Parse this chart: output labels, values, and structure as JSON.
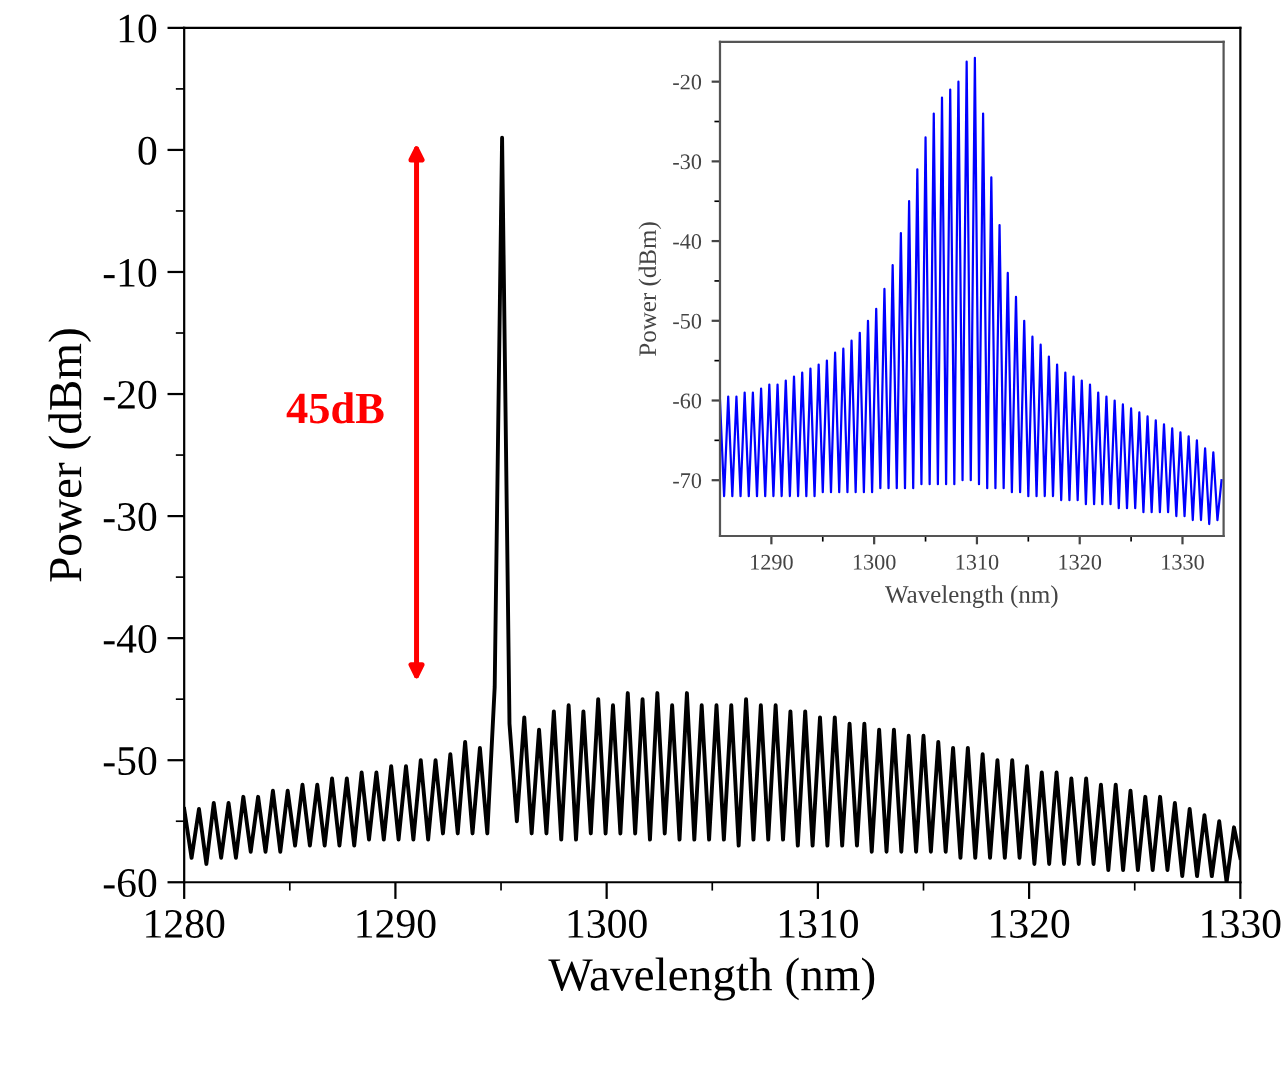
{
  "chart_data": [
    {
      "type": "line",
      "xlabel": "Wavelength (nm)",
      "ylabel": "Power (dBm)",
      "xlim": [
        1280,
        1330
      ],
      "ylim": [
        -60,
        10
      ],
      "xticks": [
        1280,
        1290,
        1300,
        1310,
        1320,
        1330
      ],
      "yticks": [
        -60,
        -50,
        -40,
        -30,
        -20,
        -10,
        0,
        10
      ],
      "grid": false,
      "legend": false,
      "marker": "none",
      "line_style": "solid",
      "annotations": [
        "45dB"
      ],
      "series": [
        {
          "color": "#000000",
          "x": [
            1280.0,
            1280.35,
            1280.7,
            1281.05,
            1281.4,
            1281.75,
            1282.1,
            1282.45,
            1282.8,
            1283.15,
            1283.5,
            1283.85,
            1284.2,
            1284.55,
            1284.9,
            1285.25,
            1285.6,
            1285.95,
            1286.3,
            1286.65,
            1287.0,
            1287.35,
            1287.7,
            1288.05,
            1288.4,
            1288.75,
            1289.1,
            1289.45,
            1289.8,
            1290.15,
            1290.5,
            1290.85,
            1291.2,
            1291.55,
            1291.9,
            1292.25,
            1292.6,
            1292.95,
            1293.3,
            1293.65,
            1294.0,
            1294.35,
            1294.7,
            1295.05,
            1295.4,
            1295.75,
            1296.1,
            1296.45,
            1296.8,
            1297.15,
            1297.5,
            1297.85,
            1298.2,
            1298.55,
            1298.9,
            1299.25,
            1299.6,
            1299.95,
            1300.3,
            1300.65,
            1301.0,
            1301.35,
            1301.7,
            1302.05,
            1302.4,
            1302.75,
            1303.1,
            1303.45,
            1303.8,
            1304.15,
            1304.5,
            1304.85,
            1305.2,
            1305.55,
            1305.9,
            1306.25,
            1306.6,
            1306.95,
            1307.3,
            1307.65,
            1308.0,
            1308.35,
            1308.7,
            1309.05,
            1309.4,
            1309.75,
            1310.1,
            1310.45,
            1310.8,
            1311.15,
            1311.5,
            1311.85,
            1312.2,
            1312.55,
            1312.9,
            1313.25,
            1313.6,
            1313.95,
            1314.3,
            1314.65,
            1315.0,
            1315.35,
            1315.7,
            1316.05,
            1316.4,
            1316.75,
            1317.1,
            1317.45,
            1317.8,
            1318.15,
            1318.5,
            1318.85,
            1319.2,
            1319.55,
            1319.9,
            1320.25,
            1320.6,
            1320.95,
            1321.3,
            1321.65,
            1322.0,
            1322.35,
            1322.7,
            1323.05,
            1323.4,
            1323.75,
            1324.1,
            1324.45,
            1324.8,
            1325.15,
            1325.5,
            1325.85,
            1326.2,
            1326.55,
            1326.9,
            1327.25,
            1327.6,
            1327.95,
            1328.3,
            1328.65,
            1329.0,
            1329.35,
            1329.7,
            1330.0
          ],
          "values": [
            -54,
            -58,
            -54,
            -58.5,
            -53.5,
            -58,
            -53.5,
            -58,
            -53,
            -57.5,
            -53,
            -57.5,
            -52.5,
            -57.5,
            -52.5,
            -57,
            -52,
            -57,
            -52,
            -57,
            -51.5,
            -57,
            -51.5,
            -57,
            -51,
            -56.5,
            -51,
            -56.5,
            -50.5,
            -56.5,
            -50.5,
            -56.5,
            -50,
            -56.5,
            -50,
            -56,
            -49.5,
            -56,
            -48.5,
            -56,
            -49,
            -56,
            -44,
            1,
            -47,
            -55,
            -46.5,
            -56,
            -47.5,
            -56,
            -46,
            -56.5,
            -45.5,
            -56.5,
            -46,
            -56,
            -45,
            -56,
            -45.5,
            -56,
            -44.5,
            -56,
            -45,
            -56.5,
            -44.5,
            -56,
            -45.5,
            -56.5,
            -44.5,
            -56.5,
            -45.5,
            -56.5,
            -45.5,
            -56.5,
            -45.5,
            -57,
            -45,
            -56.5,
            -45.5,
            -56.5,
            -45.5,
            -56.5,
            -46,
            -57,
            -46,
            -57,
            -46.5,
            -57,
            -46.5,
            -57,
            -47,
            -57,
            -47,
            -57.5,
            -47.5,
            -57.5,
            -47.5,
            -57.5,
            -48,
            -57.5,
            -48,
            -57.5,
            -48.5,
            -57.5,
            -49,
            -58,
            -49,
            -58,
            -49.5,
            -58,
            -50,
            -58,
            -50,
            -58,
            -50.5,
            -58.5,
            -51,
            -58.5,
            -51,
            -58.5,
            -51.5,
            -58.5,
            -51.5,
            -58.5,
            -52,
            -59,
            -52,
            -59,
            -52.5,
            -59,
            -53,
            -59,
            -53,
            -59,
            -53.5,
            -59.5,
            -54,
            -59.5,
            -54.5,
            -59.5,
            -55,
            -60,
            -55.5,
            -58
          ]
        }
      ]
    },
    {
      "type": "line",
      "xlabel": "Wavelength (nm)",
      "ylabel": "Power (dBm)",
      "xlim": [
        1285,
        1334
      ],
      "ylim": [
        -77,
        -15
      ],
      "xticks": [
        1290,
        1300,
        1310,
        1320,
        1330
      ],
      "yticks": [
        -70,
        -60,
        -50,
        -40,
        -30,
        -20
      ],
      "grid": false,
      "legend": false,
      "marker": "none",
      "line_style": "solid",
      "series": [
        {
          "color": "#0000ff",
          "x": [
            1285.0,
            1285.4,
            1285.8,
            1286.2,
            1286.6,
            1287.0,
            1287.4,
            1287.8,
            1288.2,
            1288.6,
            1289.0,
            1289.4,
            1289.8,
            1290.2,
            1290.6,
            1291.0,
            1291.4,
            1291.8,
            1292.2,
            1292.6,
            1293.0,
            1293.4,
            1293.8,
            1294.2,
            1294.6,
            1295.0,
            1295.4,
            1295.8,
            1296.2,
            1296.6,
            1297.0,
            1297.4,
            1297.8,
            1298.2,
            1298.6,
            1299.0,
            1299.4,
            1299.8,
            1300.2,
            1300.6,
            1301.0,
            1301.4,
            1301.8,
            1302.2,
            1302.6,
            1303.0,
            1303.4,
            1303.8,
            1304.2,
            1304.6,
            1305.0,
            1305.4,
            1305.8,
            1306.2,
            1306.6,
            1307.0,
            1307.4,
            1307.8,
            1308.2,
            1308.6,
            1309.0,
            1309.4,
            1309.8,
            1310.2,
            1310.6,
            1311.0,
            1311.4,
            1311.8,
            1312.2,
            1312.6,
            1313.0,
            1313.4,
            1313.8,
            1314.2,
            1314.6,
            1315.0,
            1315.4,
            1315.8,
            1316.2,
            1316.6,
            1317.0,
            1317.4,
            1317.8,
            1318.2,
            1318.6,
            1319.0,
            1319.4,
            1319.8,
            1320.2,
            1320.6,
            1321.0,
            1321.4,
            1321.8,
            1322.2,
            1322.6,
            1323.0,
            1323.4,
            1323.8,
            1324.2,
            1324.6,
            1325.0,
            1325.4,
            1325.8,
            1326.2,
            1326.6,
            1327.0,
            1327.4,
            1327.8,
            1328.2,
            1328.6,
            1329.0,
            1329.4,
            1329.8,
            1330.2,
            1330.6,
            1331.0,
            1331.4,
            1331.8,
            1332.2,
            1332.6,
            1333.0,
            1333.4,
            1333.8
          ],
          "values": [
            -60,
            -72,
            -59.5,
            -72,
            -59.5,
            -72,
            -59,
            -72,
            -59,
            -72,
            -58.5,
            -72,
            -58,
            -72,
            -58,
            -72,
            -57.5,
            -72,
            -57,
            -72,
            -56.5,
            -72,
            -56,
            -72,
            -55.5,
            -71.5,
            -55,
            -71.5,
            -54,
            -71.5,
            -53.5,
            -71.5,
            -52.5,
            -71.5,
            -51.5,
            -71.5,
            -50,
            -71.5,
            -48.5,
            -71,
            -46,
            -71,
            -43,
            -71,
            -39,
            -71,
            -35,
            -71,
            -31,
            -70.5,
            -27,
            -70.5,
            -24,
            -70.5,
            -22,
            -70.5,
            -21,
            -70.5,
            -20,
            -70,
            -17.5,
            -70,
            -17,
            -70.5,
            -24,
            -71,
            -32,
            -71,
            -38,
            -71,
            -44,
            -71.5,
            -47,
            -71.5,
            -50,
            -72,
            -52,
            -72,
            -53,
            -72,
            -54.5,
            -72,
            -55.5,
            -72.5,
            -56.5,
            -72.5,
            -57,
            -72.5,
            -57.5,
            -73,
            -58,
            -73,
            -59,
            -73,
            -59.5,
            -73,
            -60,
            -73.5,
            -60.5,
            -73.5,
            -61,
            -73.5,
            -61.5,
            -74,
            -62,
            -74,
            -62.5,
            -74,
            -63,
            -74,
            -63.5,
            -74.5,
            -64,
            -74.5,
            -64.5,
            -75,
            -65,
            -75,
            -66,
            -75.5,
            -66.5,
            -75,
            -70
          ]
        }
      ]
    }
  ]
}
